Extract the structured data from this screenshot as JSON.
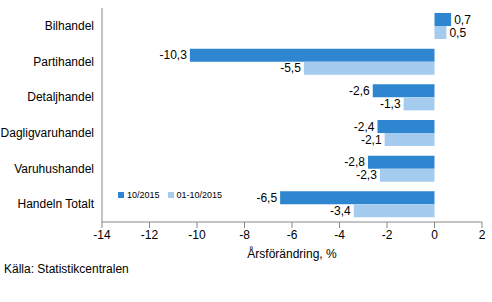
{
  "chart_data": {
    "type": "bar",
    "orientation": "horizontal",
    "categories": [
      "Bilhandel",
      "Partihandel",
      "Detaljhandel",
      "Dagligvaruhandel",
      "Varuhushandel",
      "Handeln Totalt"
    ],
    "series": [
      {
        "name": "10/2015",
        "color": "#2e86d1",
        "values": [
          0.7,
          -10.3,
          -2.6,
          -2.4,
          -2.8,
          -6.5
        ],
        "value_labels": [
          "0,7",
          "-10,3",
          "-2,6",
          "-2,4",
          "-2,8",
          "-6,5"
        ]
      },
      {
        "name": "01-10/2015",
        "color": "#a5cbee",
        "values": [
          0.5,
          -5.5,
          -1.3,
          -2.1,
          -2.3,
          -3.4
        ],
        "value_labels": [
          "0,5",
          "-5,5",
          "-1,3",
          "-2,1",
          "-2,3",
          "-3,4"
        ]
      }
    ],
    "xlabel": "Årsförändring, %",
    "xlim": [
      -14,
      2
    ],
    "xticks": [
      -14,
      -12,
      -10,
      -8,
      -6,
      -4,
      -2,
      0,
      2
    ],
    "grid": false,
    "legend": "lower left",
    "data_labels": true,
    "source": "Källa: Statistikcentralen"
  }
}
